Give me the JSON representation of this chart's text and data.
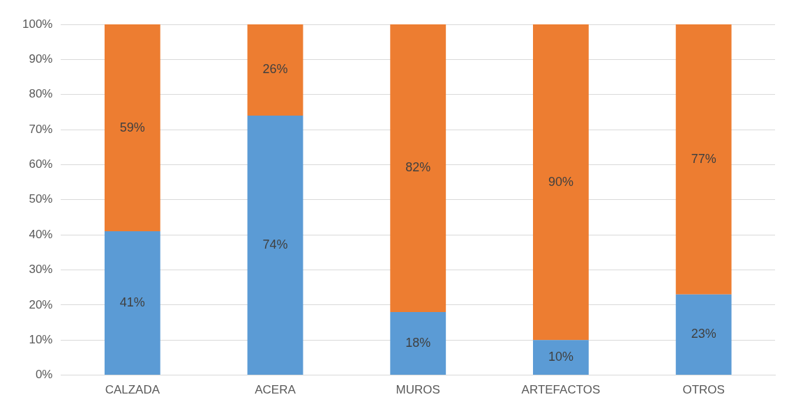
{
  "chart_data": {
    "type": "bar",
    "stacked": true,
    "categories": [
      "CALZADA",
      "ACERA",
      "MUROS",
      "ARTEFACTOS",
      "OTROS"
    ],
    "series": [
      {
        "color": "#5b9bd5",
        "values": [
          41,
          74,
          18,
          10,
          23
        ],
        "value_labels": [
          "41%",
          "74%",
          "18%",
          "10%",
          "23%"
        ]
      },
      {
        "color": "#ed7d31",
        "values": [
          59,
          26,
          82,
          90,
          77
        ],
        "value_labels": [
          "59%",
          "26%",
          "82%",
          "90%",
          "77%"
        ]
      }
    ],
    "ylim": [
      0,
      100
    ],
    "yticks": [
      {
        "value": 0,
        "label": "0%"
      },
      {
        "value": 10,
        "label": "10%"
      },
      {
        "value": 20,
        "label": "20%"
      },
      {
        "value": 30,
        "label": "30%"
      },
      {
        "value": 40,
        "label": "40%"
      },
      {
        "value": 50,
        "label": "50%"
      },
      {
        "value": 60,
        "label": "60%"
      },
      {
        "value": 70,
        "label": "70%"
      },
      {
        "value": 80,
        "label": "80%"
      },
      {
        "value": 90,
        "label": "90%"
      },
      {
        "value": 100,
        "label": "100%"
      }
    ],
    "grid": "y",
    "legend": false
  }
}
